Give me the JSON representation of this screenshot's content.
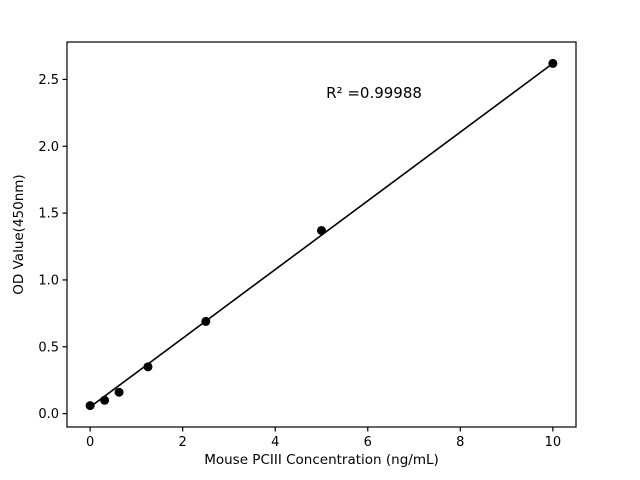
{
  "figure": {
    "background": "#ffffff",
    "frame_color": "#000000"
  },
  "chart_data": {
    "type": "scatter",
    "title": "",
    "xlabel": "Mouse PCIII Concentration (ng/mL)",
    "ylabel": "OD Value(450nm)",
    "annotation": {
      "text": "R² =0.99988",
      "x": 5.1,
      "y": 2.4
    },
    "x": [
      0,
      0.3125,
      0.625,
      1.25,
      2.5,
      5,
      10
    ],
    "y": [
      0.06,
      0.1,
      0.16,
      0.35,
      0.69,
      1.37,
      2.62
    ],
    "fit_line": {
      "x": [
        0,
        10
      ],
      "y": [
        0.05,
        2.62
      ]
    },
    "xlim": [
      -0.5,
      10.5
    ],
    "ylim": [
      -0.1,
      2.78
    ],
    "xticks": [
      0,
      2,
      4,
      6,
      8,
      10
    ],
    "xtick_labels": [
      "0",
      "2",
      "4",
      "6",
      "8",
      "10"
    ],
    "yticks": [
      0.0,
      0.5,
      1.0,
      1.5,
      2.0,
      2.5
    ],
    "ytick_labels": [
      "0.0",
      "0.5",
      "1.0",
      "1.5",
      "2.0",
      "2.5"
    ],
    "grid": false,
    "legend": null,
    "marker_color": "#000000",
    "line_color": "#000000",
    "marker_radius": 4.5
  }
}
